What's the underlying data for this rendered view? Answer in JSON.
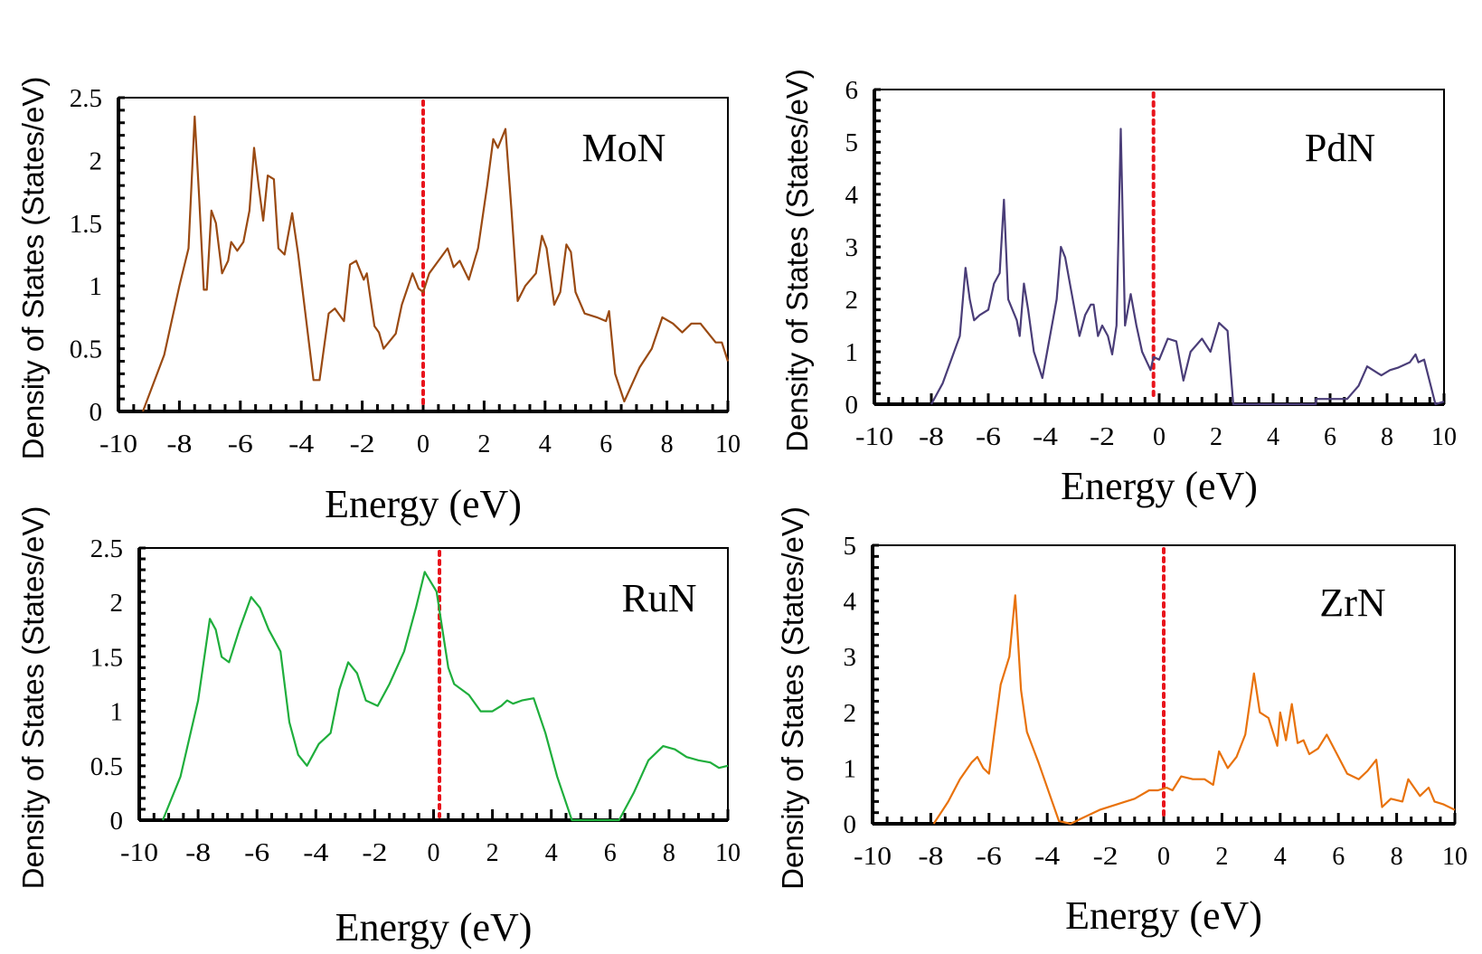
{
  "chart_data": [
    {
      "type": "line",
      "title": "MoN",
      "xlabel": "Energy (eV)",
      "ylabel": "Density of States (States/eV)",
      "xlim": [
        -10,
        10
      ],
      "ylim": [
        0,
        2.5
      ],
      "xticks": [
        -10,
        -8,
        -6,
        -4,
        -2,
        0,
        2,
        4,
        6,
        8,
        10
      ],
      "yticks": [
        "0",
        "0.5",
        "1",
        "1.5",
        "2",
        "2.5"
      ],
      "fermi_level": 0,
      "fermi_color": "#e8141c",
      "color": "#9a4a12",
      "x": [
        -9.2,
        -8.5,
        -8,
        -7.7,
        -7.5,
        -7.35,
        -7.2,
        -7.1,
        -6.95,
        -6.8,
        -6.6,
        -6.4,
        -6.3,
        -6.1,
        -5.9,
        -5.7,
        -5.55,
        -5.4,
        -5.25,
        -5.1,
        -4.9,
        -4.75,
        -4.55,
        -4.3,
        -4.1,
        -3.6,
        -3.4,
        -3.1,
        -2.9,
        -2.6,
        -2.4,
        -2.2,
        -1.95,
        -1.85,
        -1.6,
        -1.45,
        -1.3,
        -0.9,
        -0.7,
        -0.35,
        -0.15,
        0,
        0.2,
        0.5,
        0.8,
        1.0,
        1.2,
        1.5,
        1.8,
        2.1,
        2.3,
        2.45,
        2.7,
        2.9,
        3.1,
        3.35,
        3.7,
        3.9,
        4.05,
        4.3,
        4.5,
        4.7,
        4.85,
        5.0,
        5.3,
        5.7,
        6.0,
        6.1,
        6.3,
        6.6,
        7.1,
        7.5,
        7.85,
        8.2,
        8.5,
        8.8,
        9.1,
        9.6,
        9.8,
        10
      ],
      "y": [
        0,
        0.45,
        1.0,
        1.3,
        2.35,
        1.7,
        0.97,
        0.97,
        1.6,
        1.5,
        1.1,
        1.2,
        1.35,
        1.28,
        1.35,
        1.6,
        2.1,
        1.8,
        1.52,
        1.88,
        1.85,
        1.3,
        1.25,
        1.58,
        1.25,
        0.25,
        0.25,
        0.78,
        0.82,
        0.72,
        1.17,
        1.2,
        1.05,
        1.1,
        0.68,
        0.63,
        0.5,
        0.62,
        0.85,
        1.1,
        0.98,
        0.95,
        1.1,
        1.2,
        1.3,
        1.15,
        1.2,
        1.05,
        1.3,
        1.8,
        2.17,
        2.1,
        2.25,
        1.6,
        0.88,
        1.0,
        1.1,
        1.4,
        1.3,
        0.85,
        0.95,
        1.33,
        1.27,
        0.95,
        0.78,
        0.75,
        0.72,
        0.8,
        0.3,
        0.08,
        0.35,
        0.5,
        0.75,
        0.7,
        0.63,
        0.7,
        0.7,
        0.55,
        0.55,
        0.4
      ]
    },
    {
      "type": "line",
      "title": "PdN",
      "xlabel": "Energy (eV)",
      "ylabel": "Density of States (States/eV)",
      "xlim": [
        -10,
        10
      ],
      "ylim": [
        0,
        6
      ],
      "xticks": [
        -10,
        -8,
        -6,
        -4,
        -2,
        0,
        2,
        4,
        6,
        8,
        10
      ],
      "yticks": [
        "0",
        "1",
        "2",
        "3",
        "4",
        "5",
        "6"
      ],
      "fermi_level": -0.2,
      "fermi_color": "#e8141c",
      "color": "#4a3d78",
      "x": [
        -8,
        -7.6,
        -7.2,
        -7.0,
        -6.8,
        -6.65,
        -6.5,
        -6.3,
        -6.0,
        -5.8,
        -5.6,
        -5.45,
        -5.3,
        -5.0,
        -4.9,
        -4.75,
        -4.6,
        -4.4,
        -4.1,
        -3.8,
        -3.6,
        -3.45,
        -3.3,
        -3.1,
        -2.8,
        -2.6,
        -2.4,
        -2.3,
        -2.15,
        -2.0,
        -1.8,
        -1.65,
        -1.5,
        -1.35,
        -1.2,
        -1.0,
        -0.8,
        -0.6,
        -0.3,
        -0.2,
        0,
        0.3,
        0.6,
        0.85,
        1.1,
        1.5,
        1.8,
        2.1,
        2.4,
        2.6,
        5.5,
        5.5,
        6.6,
        7.0,
        7.3,
        7.8,
        8.1,
        8.4,
        8.8,
        9.0,
        9.1,
        9.3,
        9.7,
        10
      ],
      "y": [
        0,
        0.4,
        1.0,
        1.3,
        2.6,
        2.0,
        1.6,
        1.7,
        1.8,
        2.3,
        2.5,
        3.9,
        2.0,
        1.6,
        1.3,
        2.3,
        1.8,
        1.0,
        0.5,
        1.4,
        2.0,
        3.0,
        2.8,
        2.2,
        1.3,
        1.7,
        1.9,
        1.9,
        1.3,
        1.5,
        1.3,
        0.95,
        1.5,
        5.25,
        1.5,
        2.1,
        1.5,
        1.0,
        0.65,
        0.9,
        0.85,
        1.25,
        1.2,
        0.45,
        1.0,
        1.25,
        1.0,
        1.55,
        1.4,
        0,
        0,
        0.1,
        0.1,
        0.35,
        0.72,
        0.55,
        0.65,
        0.7,
        0.8,
        0.95,
        0.8,
        0.85,
        0,
        0.05
      ]
    },
    {
      "type": "line",
      "title": "RuN",
      "xlabel": "Energy (eV)",
      "ylabel": "Density of States (States/eV)",
      "xlim": [
        -10,
        10
      ],
      "ylim": [
        0,
        2.5
      ],
      "xticks": [
        -10,
        -8,
        -6,
        -4,
        -2,
        0,
        2,
        4,
        6,
        8,
        10
      ],
      "yticks": [
        "0",
        "0.5",
        "1",
        "1.5",
        "2",
        "2.5"
      ],
      "fermi_level": 0.2,
      "fermi_color": "#e8141c",
      "color": "#1fae3c",
      "x": [
        -9.2,
        -8.6,
        -8,
        -7.6,
        -7.4,
        -7.2,
        -6.95,
        -6.6,
        -6.2,
        -5.9,
        -5.6,
        -5.2,
        -4.9,
        -4.6,
        -4.3,
        -3.9,
        -3.5,
        -3.2,
        -2.9,
        -2.6,
        -2.3,
        -1.9,
        -1.5,
        -1.0,
        -0.6,
        -0.3,
        0.1,
        0.5,
        0.7,
        1.2,
        1.6,
        2.0,
        2.3,
        2.5,
        2.7,
        3.0,
        3.4,
        3.8,
        4.2,
        4.7,
        6.3,
        6.8,
        7.3,
        7.8,
        8.2,
        8.6,
        9.0,
        9.4,
        9.7,
        10
      ],
      "y": [
        0,
        0.4,
        1.1,
        1.85,
        1.75,
        1.5,
        1.45,
        1.75,
        2.05,
        1.95,
        1.75,
        1.55,
        0.9,
        0.6,
        0.5,
        0.7,
        0.8,
        1.2,
        1.45,
        1.35,
        1.1,
        1.05,
        1.25,
        1.55,
        1.95,
        2.28,
        2.1,
        1.4,
        1.25,
        1.15,
        1.0,
        1.0,
        1.05,
        1.1,
        1.07,
        1.1,
        1.12,
        0.8,
        0.4,
        0,
        0,
        0.25,
        0.55,
        0.68,
        0.65,
        0.58,
        0.55,
        0.53,
        0.48,
        0.5
      ]
    },
    {
      "type": "line",
      "title": "ZrN",
      "xlabel": "Energy (eV)",
      "ylabel": "Density of States (States/eV)",
      "xlim": [
        -10,
        10
      ],
      "ylim": [
        0,
        5
      ],
      "xticks": [
        -10,
        -8,
        -6,
        -4,
        -2,
        0,
        2,
        4,
        6,
        8,
        10
      ],
      "yticks": [
        "0",
        "1",
        "2",
        "3",
        "4",
        "5"
      ],
      "fermi_level": 0,
      "fermi_color": "#e8141c",
      "color": "#e8720c",
      "x": [
        -7.9,
        -7.4,
        -7.0,
        -6.6,
        -6.4,
        -6.2,
        -6.0,
        -5.8,
        -5.6,
        -5.3,
        -5.1,
        -4.9,
        -4.7,
        -4.3,
        -3.9,
        -3.6,
        -3.2,
        -2.8,
        -2.2,
        -1.6,
        -1.0,
        -0.5,
        -0.2,
        0.1,
        0.3,
        0.6,
        1.0,
        1.4,
        1.7,
        1.9,
        2.2,
        2.5,
        2.8,
        3.1,
        3.3,
        3.6,
        3.9,
        4.0,
        4.2,
        4.4,
        4.6,
        4.8,
        5.0,
        5.3,
        5.6,
        5.9,
        6.3,
        6.7,
        7.0,
        7.3,
        7.5,
        7.8,
        8.2,
        8.4,
        8.8,
        9.1,
        9.3,
        9.6,
        10
      ],
      "y": [
        0,
        0.4,
        0.8,
        1.1,
        1.2,
        1.0,
        0.9,
        1.7,
        2.5,
        3.0,
        4.1,
        2.4,
        1.65,
        1.1,
        0.5,
        0.05,
        0,
        0.1,
        0.25,
        0.35,
        0.45,
        0.6,
        0.6,
        0.65,
        0.6,
        0.85,
        0.8,
        0.8,
        0.7,
        1.3,
        1.0,
        1.2,
        1.6,
        2.7,
        2.0,
        1.9,
        1.4,
        2.0,
        1.5,
        2.15,
        1.45,
        1.5,
        1.25,
        1.35,
        1.6,
        1.3,
        0.9,
        0.8,
        0.95,
        1.15,
        0.3,
        0.45,
        0.4,
        0.8,
        0.5,
        0.65,
        0.4,
        0.35,
        0.25
      ]
    }
  ]
}
